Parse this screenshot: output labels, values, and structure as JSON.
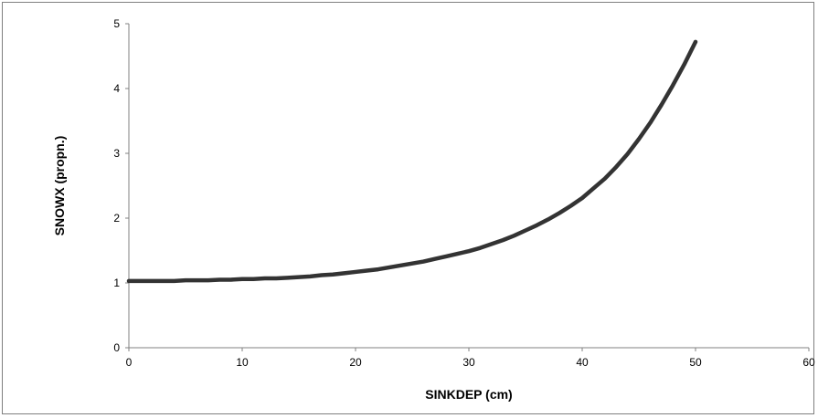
{
  "chart_data": {
    "type": "line",
    "title": "",
    "xlabel": "SINKDEP (cm)",
    "ylabel": "SNOWX (propn.)",
    "xlim": [
      0,
      60
    ],
    "ylim": [
      0,
      5
    ],
    "x_ticks": [
      0,
      10,
      20,
      30,
      40,
      50,
      60
    ],
    "y_ticks": [
      0,
      1,
      2,
      3,
      4,
      5
    ],
    "x_tick_labels": [
      "0",
      "10",
      "20",
      "30",
      "40",
      "50",
      "60"
    ],
    "y_tick_labels": [
      "0",
      "1",
      "2",
      "3",
      "4",
      "5"
    ],
    "grid": false,
    "legend": "none",
    "line_color": "#333333",
    "series": [
      {
        "x": [
          0,
          2,
          4,
          5,
          7,
          8,
          9,
          10,
          11,
          12,
          13,
          14,
          15,
          16,
          17,
          18,
          19,
          20,
          21,
          22,
          23,
          24,
          25,
          26,
          27,
          28,
          29,
          30,
          31,
          32,
          33,
          34,
          35,
          36,
          37,
          38,
          39,
          40,
          41,
          42,
          43,
          44,
          45,
          46,
          47,
          48,
          49,
          50
        ],
        "y": [
          1.03,
          1.03,
          1.03,
          1.04,
          1.04,
          1.05,
          1.05,
          1.06,
          1.06,
          1.07,
          1.07,
          1.08,
          1.09,
          1.1,
          1.12,
          1.13,
          1.15,
          1.17,
          1.19,
          1.21,
          1.24,
          1.27,
          1.3,
          1.33,
          1.37,
          1.41,
          1.45,
          1.49,
          1.54,
          1.6,
          1.66,
          1.73,
          1.81,
          1.89,
          1.98,
          2.08,
          2.19,
          2.31,
          2.46,
          2.61,
          2.79,
          2.99,
          3.22,
          3.47,
          3.75,
          4.05,
          4.37,
          4.72
        ]
      }
    ]
  }
}
